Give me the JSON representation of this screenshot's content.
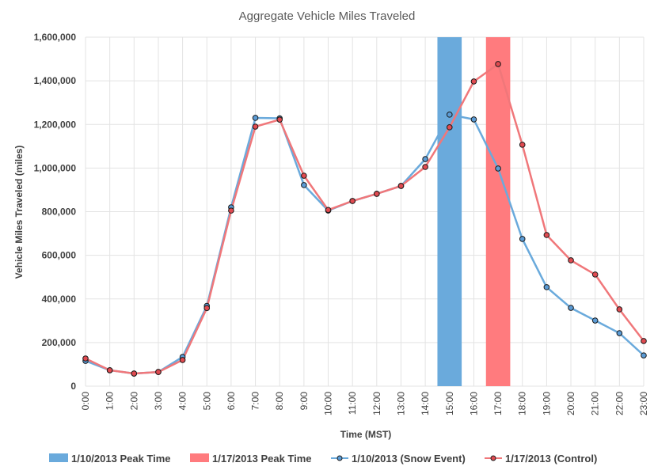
{
  "chart_data": {
    "type": "line",
    "title": "Aggregate Vehicle Miles Traveled",
    "xlabel": "Time (MST)",
    "ylabel": "Vehicle Miles Traveled (miles)",
    "ylim": [
      0,
      1600000
    ],
    "yticks": [
      0,
      200000,
      400000,
      600000,
      800000,
      1000000,
      1200000,
      1400000,
      1600000
    ],
    "ytick_labels": [
      "0",
      "200,000",
      "400,000",
      "600,000",
      "800,000",
      "1,000,000",
      "1,200,000",
      "1,400,000",
      "1,600,000"
    ],
    "grid": true,
    "legend_position": "bottom",
    "categories": [
      "0:00",
      "1:00",
      "2:00",
      "3:00",
      "4:00",
      "5:00",
      "6:00",
      "7:00",
      "8:00",
      "9:00",
      "10:00",
      "11:00",
      "12:00",
      "13:00",
      "14:00",
      "15:00",
      "16:00",
      "17:00",
      "18:00",
      "19:00",
      "20:00",
      "21:00",
      "22:00",
      "23:00"
    ],
    "bands": [
      {
        "name": "1/10/2013 Peak Time",
        "center": "15:00",
        "start_hour": 14.5,
        "end_hour": 15.5,
        "color": "#6aaadc"
      },
      {
        "name": "1/17/2013 Peak Time",
        "center": "17:00",
        "start_hour": 16.5,
        "end_hour": 17.5,
        "color": "#ff7b7e"
      }
    ],
    "series": [
      {
        "name": "1/10/2013 (Snow Event)",
        "color": "#6aaadc",
        "marker_color": "#5b9bd5",
        "values": [
          116000,
          73000,
          58000,
          65000,
          134000,
          368000,
          820000,
          1230000,
          1228000,
          922000,
          805000,
          849000,
          882000,
          918000,
          1041000,
          1245000,
          1223000,
          998000,
          675000,
          454000,
          359000,
          301000,
          243000,
          141000
        ]
      },
      {
        "name": "1/17/2013 (Control)",
        "color": "#f0777a",
        "marker_color": "#e04a50",
        "values": [
          127000,
          73000,
          58000,
          65000,
          120000,
          358000,
          805000,
          1190000,
          1222000,
          965000,
          808000,
          849000,
          882000,
          918000,
          1005000,
          1187000,
          1397000,
          1477000,
          1107000,
          693000,
          577000,
          512000,
          352000,
          207000
        ]
      }
    ]
  }
}
